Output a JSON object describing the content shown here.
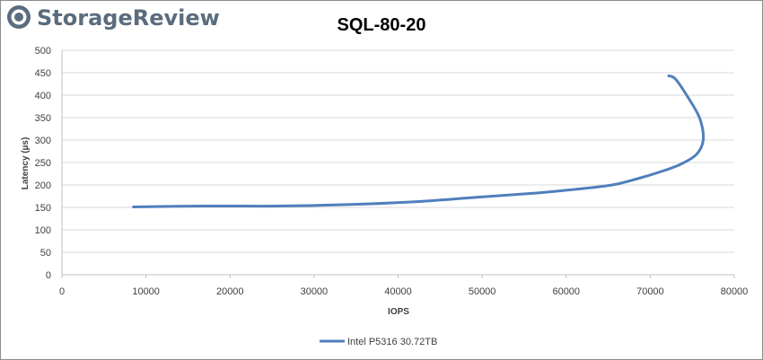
{
  "brand": {
    "logo_text": "StorageReview",
    "logo_color": "#5a6c7d",
    "logo_icon": "storagereview-circle-logo"
  },
  "chart_data": {
    "type": "line",
    "title": "SQL-80-20",
    "xlabel": "IOPS",
    "ylabel": "Latency (µs)",
    "xlim": [
      0,
      80000
    ],
    "ylim": [
      0,
      500
    ],
    "x_ticks": [
      "0",
      "10000",
      "20000",
      "30000",
      "40000",
      "50000",
      "60000",
      "70000",
      "80000"
    ],
    "y_ticks": [
      "0",
      "50",
      "100",
      "150",
      "200",
      "250",
      "300",
      "350",
      "400",
      "450",
      "500"
    ],
    "grid": true,
    "legend_position": "bottom",
    "series": [
      {
        "name": "Intel P5316 30.72TB",
        "color": "#4f7fbd",
        "x": [
          8500,
          17000,
          25500,
          33500,
          41500,
          49000,
          56500,
          61500,
          65500,
          68500,
          71000,
          73500,
          75500,
          76300,
          75900,
          74500,
          73000,
          72200
        ],
        "y": [
          151,
          153,
          153,
          156,
          162,
          172,
          182,
          191,
          200,
          214,
          228,
          245,
          268,
          300,
          348,
          395,
          436,
          443
        ]
      }
    ]
  }
}
